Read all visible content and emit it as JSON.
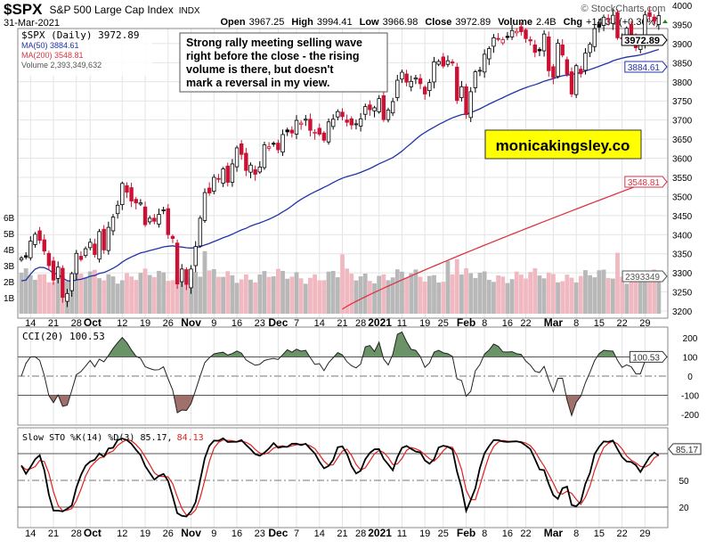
{
  "header": {
    "symbol": "$SPX",
    "name": "S&P 500 Large Cap Index",
    "exchange": "INDX",
    "date": "31-Mar-2021",
    "copyright": "© StockCharts.com",
    "open_label": "Open",
    "open": "3967.25",
    "high_label": "High",
    "high": "3994.41",
    "low_label": "Low",
    "low": "3966.98",
    "close_label": "Close",
    "close": "3972.89",
    "volume_label": "Volume",
    "volume": "2.4B",
    "chg_label": "Chg",
    "chg": "+14.34 (+0.36%)"
  },
  "legend": {
    "price": "$SPX (Daily) 3972.89",
    "ma50": "MA(50) 3884.61",
    "ma200": "MA(200) 3548.81",
    "volume": "Volume 2,393,349,632",
    "cci": "CCI(20) 100.53",
    "sto": "Slow STO %K(14) %D(3) 85.17,",
    "sto_d": "84.13"
  },
  "annotation": {
    "text_lines": [
      "Strong rally meeting selling wave",
      "right before the close - the rising",
      "volume is there, but doesn't",
      "mark a reversal in my view."
    ],
    "watermark": "monicakingsley.co"
  },
  "colors": {
    "up": "#000000",
    "down": "#cc1133",
    "ma50": "#2233aa",
    "ma200": "#dd3344",
    "vol_down": "#f0b8c0",
    "vol_up": "#b8b8b8",
    "cci_pos": "#6b9368",
    "cci_neg": "#a0706a",
    "watermark_bg": "#ffff00"
  },
  "chart_data": {
    "type": "candlestick",
    "title": "$SPX (Daily)",
    "price_ticks": [
      "3200",
      "3250",
      "3300",
      "3350",
      "3400",
      "3450",
      "3500",
      "3550",
      "3600",
      "3650",
      "3700",
      "3750",
      "3800",
      "3850",
      "3900",
      "3950",
      "4000"
    ],
    "volume_ticks": [
      "1B",
      "2B",
      "3B",
      "4B",
      "5B",
      "6B"
    ],
    "cci_ticks": [
      "200",
      "100",
      "0",
      "-100",
      "-200"
    ],
    "sto_ticks": [
      "50",
      "20"
    ],
    "right_labels": {
      "close": "3972.89",
      "ma50": "3884.61",
      "ma200": "3548.81",
      "volume": "2393349",
      "cci": "100.53",
      "sto": "85.17"
    },
    "date_ticks": [
      {
        "label": "14",
        "i": 2
      },
      {
        "label": "21",
        "i": 7
      },
      {
        "label": "28",
        "i": 12
      },
      {
        "label": "Oct",
        "i": 15,
        "bold": true
      },
      {
        "label": "12",
        "i": 22
      },
      {
        "label": "19",
        "i": 27
      },
      {
        "label": "26",
        "i": 32
      },
      {
        "label": "Nov",
        "i": 37,
        "bold": true
      },
      {
        "label": "9",
        "i": 42
      },
      {
        "label": "16",
        "i": 47
      },
      {
        "label": "23",
        "i": 52
      },
      {
        "label": "Dec",
        "i": 56,
        "bold": true
      },
      {
        "label": "7",
        "i": 60
      },
      {
        "label": "14",
        "i": 65
      },
      {
        "label": "21",
        "i": 70
      },
      {
        "label": "28",
        "i": 74
      },
      {
        "label": "2021",
        "i": 78,
        "bold": true
      },
      {
        "label": "11",
        "i": 83
      },
      {
        "label": "19",
        "i": 88
      },
      {
        "label": "25",
        "i": 92
      },
      {
        "label": "Feb",
        "i": 97,
        "bold": true
      },
      {
        "label": "8",
        "i": 101
      },
      {
        "label": "16",
        "i": 106
      },
      {
        "label": "22",
        "i": 110
      },
      {
        "label": "Mar",
        "i": 116,
        "bold": true
      },
      {
        "label": "8",
        "i": 121
      },
      {
        "label": "15",
        "i": 126
      },
      {
        "label": "22",
        "i": 131
      },
      {
        "label": "29",
        "i": 136
      }
    ],
    "closes": [
      3339,
      3341,
      3383,
      3401,
      3385,
      3357,
      3319,
      3281,
      3315,
      3236,
      3246,
      3298,
      3351,
      3335,
      3363,
      3380,
      3348,
      3408,
      3360,
      3419,
      3446,
      3477,
      3534,
      3511,
      3488,
      3483,
      3483,
      3426,
      3443,
      3435,
      3453,
      3465,
      3400,
      3390,
      3271,
      3310,
      3270,
      3310,
      3369,
      3443,
      3510,
      3509,
      3550,
      3545,
      3572,
      3537,
      3585,
      3627,
      3610,
      3568,
      3582,
      3558,
      3577,
      3635,
      3630,
      3638,
      3622,
      3662,
      3669,
      3666,
      3699,
      3692,
      3702,
      3673,
      3668,
      3663,
      3647,
      3695,
      3702,
      3722,
      3709,
      3694,
      3687,
      3690,
      3703,
      3735,
      3727,
      3732,
      3756,
      3701,
      3726,
      3748,
      3804,
      3825,
      3799,
      3801,
      3810,
      3795,
      3768,
      3798,
      3852,
      3853,
      3841,
      3855,
      3849,
      3751,
      3787,
      3714,
      3774,
      3826,
      3830,
      3872,
      3887,
      3915,
      3911,
      3910,
      3916,
      3934,
      3932,
      3931,
      3913,
      3907,
      3877,
      3881,
      3925,
      3829,
      3811,
      3901,
      3870,
      3820,
      3768,
      3842,
      3821,
      3875,
      3898,
      3939,
      3943,
      3969,
      3963,
      3974,
      3915,
      3913,
      3940,
      3911,
      3889,
      3910,
      3975,
      3971,
      3959,
      3973
    ],
    "ma50_last": 3884.61,
    "ma200": {
      "start_index": 70,
      "start": 3205,
      "end": 3548.81
    },
    "volume_spikes": [
      {
        "i": 40,
        "v": 3.9
      },
      {
        "i": 70,
        "v": 3.7
      },
      {
        "i": 93,
        "v": 3.3
      },
      {
        "i": 95,
        "v": 3.4
      },
      {
        "i": 130,
        "v": 3.8
      }
    ]
  }
}
